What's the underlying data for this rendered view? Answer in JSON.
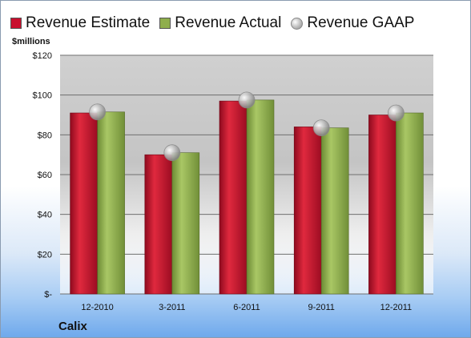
{
  "legend": {
    "estimate": "Revenue Estimate",
    "actual": "Revenue Actual",
    "gaap": "Revenue GAAP"
  },
  "unit_label": "$millions",
  "company": "Calix",
  "colors": {
    "estimate": "#c8102e",
    "actual": "#8fae4c",
    "gaap": "#b4b4b4"
  },
  "chart_data": {
    "type": "bar",
    "categories": [
      "12-2010",
      "3-2011",
      "6-2011",
      "9-2011",
      "12-2011"
    ],
    "series": [
      {
        "name": "Revenue Estimate",
        "values": [
          91,
          70,
          97,
          84,
          90
        ]
      },
      {
        "name": "Revenue Actual",
        "values": [
          91.5,
          71,
          97.5,
          83.5,
          91
        ]
      },
      {
        "name": "Revenue GAAP",
        "values": [
          91.5,
          71,
          97.5,
          83.5,
          91
        ]
      }
    ],
    "ylabel": "$millions",
    "ylim": [
      0,
      120
    ],
    "yticks": [
      0,
      20,
      40,
      60,
      80,
      100,
      120
    ],
    "ytick_labels": [
      "$-",
      "$20",
      "$40",
      "$60",
      "$80",
      "$100",
      "$120"
    ],
    "grid": true,
    "legend_position": "top"
  }
}
